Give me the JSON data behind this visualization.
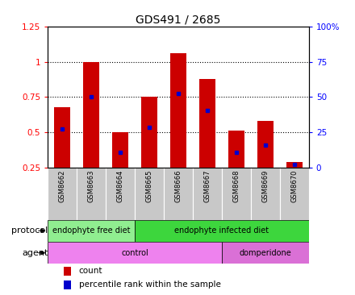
{
  "title": "GDS491 / 2685",
  "samples": [
    "GSM8662",
    "GSM8663",
    "GSM8664",
    "GSM8665",
    "GSM8666",
    "GSM8667",
    "GSM8668",
    "GSM8669",
    "GSM8670"
  ],
  "count_values": [
    0.68,
    1.0,
    0.5,
    0.75,
    1.06,
    0.88,
    0.51,
    0.58,
    0.29
  ],
  "percentile_values": [
    0.525,
    0.75,
    0.355,
    0.535,
    0.775,
    0.655,
    0.355,
    0.41,
    0.27
  ],
  "count_base": 0.25,
  "ylim_left": [
    0.25,
    1.25
  ],
  "ylim_right": [
    0,
    100
  ],
  "yticks_left": [
    0.25,
    0.5,
    0.75,
    1.0,
    1.25
  ],
  "yticks_right": [
    0,
    25,
    50,
    75,
    100
  ],
  "ytick_labels_left": [
    "0.25",
    "0.5",
    "0.75",
    "1",
    "1.25"
  ],
  "ytick_labels_right": [
    "0",
    "25",
    "50",
    "75",
    "100%"
  ],
  "dotted_lines": [
    0.5,
    0.75,
    1.0
  ],
  "protocol_groups": [
    {
      "label": "endophyte free diet",
      "start": 0,
      "end": 3,
      "color": "#90EE90"
    },
    {
      "label": "endophyte infected diet",
      "start": 3,
      "end": 9,
      "color": "#3DD63D"
    }
  ],
  "agent_groups": [
    {
      "label": "control",
      "start": 0,
      "end": 6,
      "color": "#EE82EE"
    },
    {
      "label": "domperidone",
      "start": 6,
      "end": 9,
      "color": "#DA70D6"
    }
  ],
  "bar_color": "#CC0000",
  "percentile_color": "#0000CC",
  "bar_width": 0.55,
  "legend_count_color": "#CC0000",
  "legend_pct_color": "#0000CC",
  "bg_color": "#FFFFFF",
  "tick_label_bg": "#C8C8C8",
  "label_protocol": "protocol",
  "label_agent": "agent",
  "label_count": "count",
  "label_pct": "percentile rank within the sample",
  "title_fontsize": 10,
  "axis_fontsize": 7.5,
  "label_fontsize": 7.5,
  "sample_fontsize": 6,
  "row_label_fontsize": 8,
  "group_label_fontsize": 7
}
